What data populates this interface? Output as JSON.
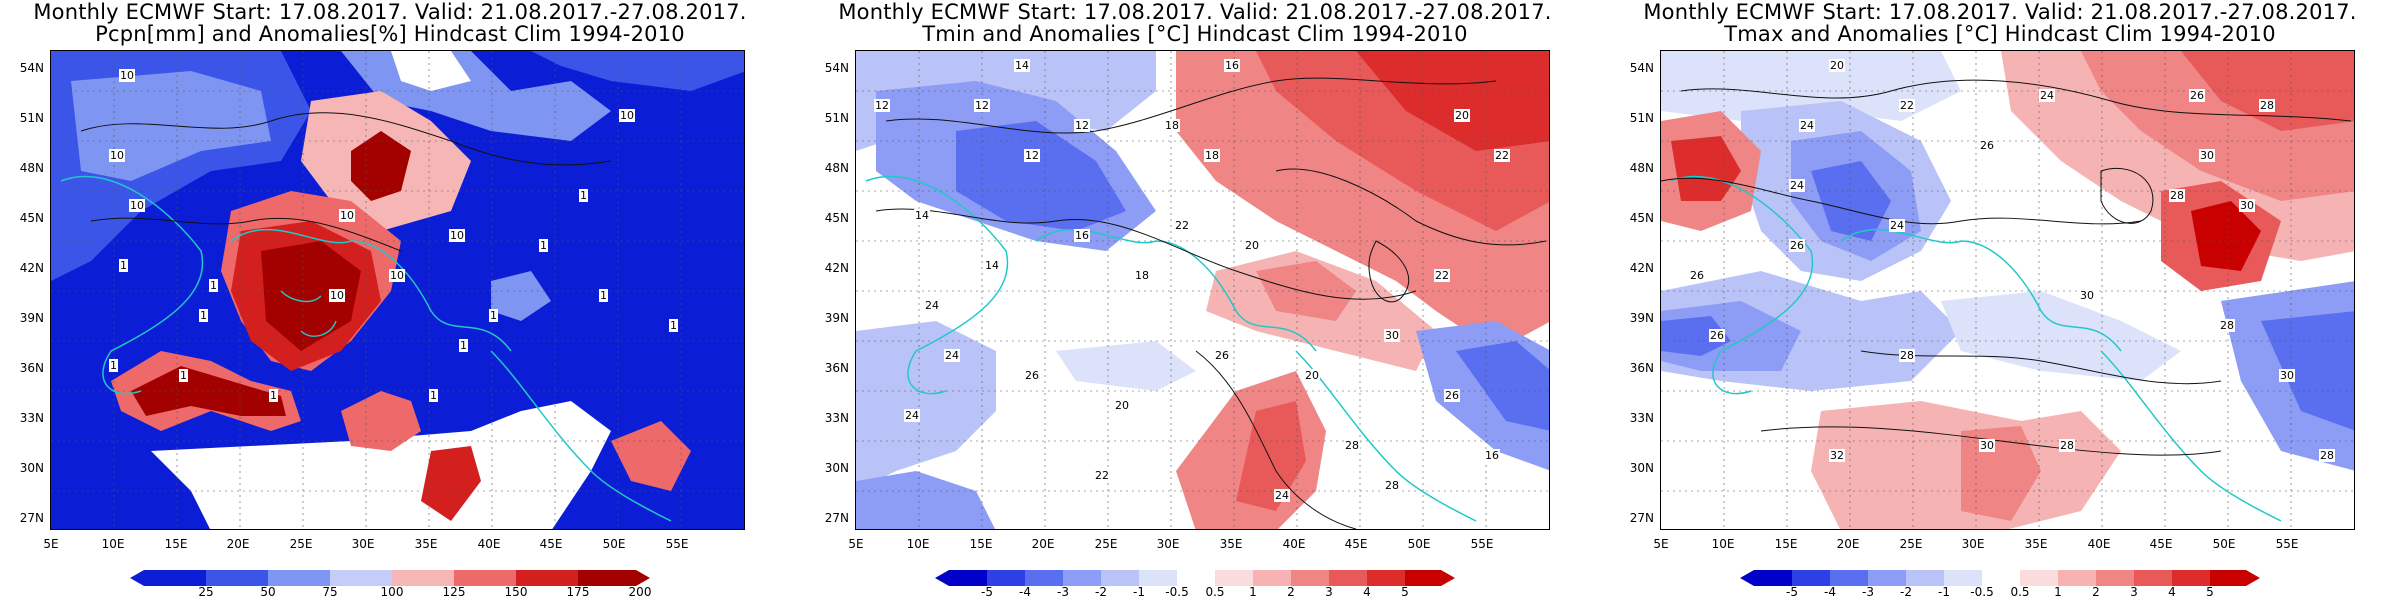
{
  "panels": [
    {
      "title_line1": "Monthly ECMWF Start: 17.08.2017. Valid: 21.08.2017.-27.08.2017.",
      "title_line2": "Pcpn[mm] and Anomalies[%] Hindcast Clim 1994-2010",
      "colorbar_labels": [
        "25",
        "50",
        "75",
        "100",
        "125",
        "150",
        "175",
        "200"
      ],
      "contour_labels": [
        "10",
        "10",
        "10",
        "1",
        "1",
        "1",
        "1",
        "10",
        "10",
        "10",
        "1",
        "1",
        "1",
        "1",
        "10",
        "1",
        "1",
        "1",
        "1",
        "10",
        "1"
      ],
      "colors": [
        "#0b1ed6",
        "#3a55e8",
        "#7f95f2",
        "#c4cdf7",
        "#ffffff",
        "#f7b6b6",
        "#ee6a6a",
        "#d41f1f",
        "#a30000"
      ]
    },
    {
      "title_line1": "Monthly ECMWF Start: 17.08.2017. Valid: 21.08.2017.-27.08.2017.",
      "title_line2": "Tmin and Anomalies [°C] Hindcast Clim 1994-2010",
      "colorbar_labels": [
        "-5",
        "-4",
        "-3",
        "-2",
        "-1",
        "-0.5",
        "0.5",
        "1",
        "2",
        "3",
        "4",
        "5"
      ],
      "contour_labels": [
        "14",
        "12",
        "12",
        "12",
        "12",
        "16",
        "18",
        "18",
        "20",
        "22",
        "14",
        "14",
        "16",
        "18",
        "20",
        "22",
        "24",
        "24",
        "26",
        "20",
        "22",
        "24",
        "26",
        "28",
        "30",
        "16",
        "20",
        "22",
        "24",
        "26",
        "28"
      ],
      "colors": [
        "#0000c8",
        "#2f3fe6",
        "#5a6ef0",
        "#8d9cf4",
        "#b9c3f8",
        "#dde2fb",
        "#ffffff",
        "#fbdcdc",
        "#f5b3b3",
        "#ef8585",
        "#e85a5a",
        "#dd2c2c",
        "#c80000"
      ]
    },
    {
      "title_line1": "Monthly ECMWF Start: 17.08.2017. Valid: 21.08.2017.-27.08.2017.",
      "title_line2": "Tmax and Anomalies [°C] Hindcast Clim 1994-2010",
      "colorbar_labels": [
        "-5",
        "-4",
        "-3",
        "-2",
        "-1",
        "-0.5",
        "0.5",
        "1",
        "2",
        "3",
        "4",
        "5"
      ],
      "contour_labels": [
        "20",
        "24",
        "26",
        "28",
        "30",
        "22",
        "24",
        "26",
        "28",
        "30",
        "26",
        "24",
        "24",
        "26",
        "28",
        "30",
        "28",
        "30",
        "28",
        "30",
        "32",
        "28",
        "26"
      ],
      "colors": [
        "#0000c8",
        "#2f3fe6",
        "#5a6ef0",
        "#8d9cf4",
        "#b9c3f8",
        "#dde2fb",
        "#ffffff",
        "#fbdcdc",
        "#f5b3b3",
        "#ef8585",
        "#e85a5a",
        "#dd2c2c",
        "#c80000"
      ]
    }
  ],
  "axes": {
    "lat_labels": [
      "54N",
      "51N",
      "48N",
      "45N",
      "42N",
      "39N",
      "36N",
      "33N",
      "30N",
      "27N"
    ],
    "lon_labels": [
      "5E",
      "10E",
      "15E",
      "20E",
      "25E",
      "30E",
      "35E",
      "40E",
      "45E",
      "50E",
      "55E"
    ]
  }
}
